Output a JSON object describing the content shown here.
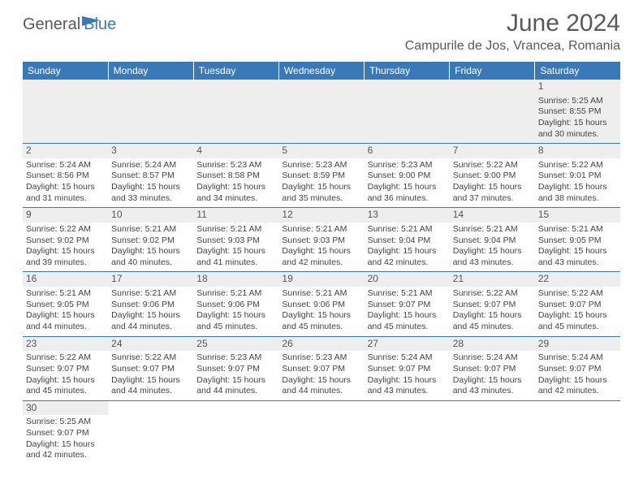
{
  "brand": {
    "part1": "General",
    "part2": "Blue",
    "flag_color": "#3a79b7"
  },
  "title": {
    "month": "June 2024",
    "location": "Campurile de Jos, Vrancea, Romania"
  },
  "style": {
    "header_bg": "#3a79b7",
    "header_text": "#ffffff",
    "daynum_bg": "#eeeeee",
    "cell_border": "#3a79b7",
    "body_text": "#444444",
    "title_color": "#58595b",
    "font_cell": 10.5,
    "font_header": 12,
    "font_title": 30,
    "font_location": 16
  },
  "weekdays": [
    "Sunday",
    "Monday",
    "Tuesday",
    "Wednesday",
    "Thursday",
    "Friday",
    "Saturday"
  ],
  "weeks": [
    [
      null,
      null,
      null,
      null,
      null,
      null,
      {
        "n": "1",
        "sunrise": "Sunrise: 5:25 AM",
        "sunset": "Sunset: 8:55 PM",
        "daylight": "Daylight: 15 hours and 30 minutes."
      }
    ],
    [
      {
        "n": "2",
        "sunrise": "Sunrise: 5:24 AM",
        "sunset": "Sunset: 8:56 PM",
        "daylight": "Daylight: 15 hours and 31 minutes."
      },
      {
        "n": "3",
        "sunrise": "Sunrise: 5:24 AM",
        "sunset": "Sunset: 8:57 PM",
        "daylight": "Daylight: 15 hours and 33 minutes."
      },
      {
        "n": "4",
        "sunrise": "Sunrise: 5:23 AM",
        "sunset": "Sunset: 8:58 PM",
        "daylight": "Daylight: 15 hours and 34 minutes."
      },
      {
        "n": "5",
        "sunrise": "Sunrise: 5:23 AM",
        "sunset": "Sunset: 8:59 PM",
        "daylight": "Daylight: 15 hours and 35 minutes."
      },
      {
        "n": "6",
        "sunrise": "Sunrise: 5:23 AM",
        "sunset": "Sunset: 9:00 PM",
        "daylight": "Daylight: 15 hours and 36 minutes."
      },
      {
        "n": "7",
        "sunrise": "Sunrise: 5:22 AM",
        "sunset": "Sunset: 9:00 PM",
        "daylight": "Daylight: 15 hours and 37 minutes."
      },
      {
        "n": "8",
        "sunrise": "Sunrise: 5:22 AM",
        "sunset": "Sunset: 9:01 PM",
        "daylight": "Daylight: 15 hours and 38 minutes."
      }
    ],
    [
      {
        "n": "9",
        "sunrise": "Sunrise: 5:22 AM",
        "sunset": "Sunset: 9:02 PM",
        "daylight": "Daylight: 15 hours and 39 minutes."
      },
      {
        "n": "10",
        "sunrise": "Sunrise: 5:21 AM",
        "sunset": "Sunset: 9:02 PM",
        "daylight": "Daylight: 15 hours and 40 minutes."
      },
      {
        "n": "11",
        "sunrise": "Sunrise: 5:21 AM",
        "sunset": "Sunset: 9:03 PM",
        "daylight": "Daylight: 15 hours and 41 minutes."
      },
      {
        "n": "12",
        "sunrise": "Sunrise: 5:21 AM",
        "sunset": "Sunset: 9:03 PM",
        "daylight": "Daylight: 15 hours and 42 minutes."
      },
      {
        "n": "13",
        "sunrise": "Sunrise: 5:21 AM",
        "sunset": "Sunset: 9:04 PM",
        "daylight": "Daylight: 15 hours and 42 minutes."
      },
      {
        "n": "14",
        "sunrise": "Sunrise: 5:21 AM",
        "sunset": "Sunset: 9:04 PM",
        "daylight": "Daylight: 15 hours and 43 minutes."
      },
      {
        "n": "15",
        "sunrise": "Sunrise: 5:21 AM",
        "sunset": "Sunset: 9:05 PM",
        "daylight": "Daylight: 15 hours and 43 minutes."
      }
    ],
    [
      {
        "n": "16",
        "sunrise": "Sunrise: 5:21 AM",
        "sunset": "Sunset: 9:05 PM",
        "daylight": "Daylight: 15 hours and 44 minutes."
      },
      {
        "n": "17",
        "sunrise": "Sunrise: 5:21 AM",
        "sunset": "Sunset: 9:06 PM",
        "daylight": "Daylight: 15 hours and 44 minutes."
      },
      {
        "n": "18",
        "sunrise": "Sunrise: 5:21 AM",
        "sunset": "Sunset: 9:06 PM",
        "daylight": "Daylight: 15 hours and 45 minutes."
      },
      {
        "n": "19",
        "sunrise": "Sunrise: 5:21 AM",
        "sunset": "Sunset: 9:06 PM",
        "daylight": "Daylight: 15 hours and 45 minutes."
      },
      {
        "n": "20",
        "sunrise": "Sunrise: 5:21 AM",
        "sunset": "Sunset: 9:07 PM",
        "daylight": "Daylight: 15 hours and 45 minutes."
      },
      {
        "n": "21",
        "sunrise": "Sunrise: 5:22 AM",
        "sunset": "Sunset: 9:07 PM",
        "daylight": "Daylight: 15 hours and 45 minutes."
      },
      {
        "n": "22",
        "sunrise": "Sunrise: 5:22 AM",
        "sunset": "Sunset: 9:07 PM",
        "daylight": "Daylight: 15 hours and 45 minutes."
      }
    ],
    [
      {
        "n": "23",
        "sunrise": "Sunrise: 5:22 AM",
        "sunset": "Sunset: 9:07 PM",
        "daylight": "Daylight: 15 hours and 45 minutes."
      },
      {
        "n": "24",
        "sunrise": "Sunrise: 5:22 AM",
        "sunset": "Sunset: 9:07 PM",
        "daylight": "Daylight: 15 hours and 44 minutes."
      },
      {
        "n": "25",
        "sunrise": "Sunrise: 5:23 AM",
        "sunset": "Sunset: 9:07 PM",
        "daylight": "Daylight: 15 hours and 44 minutes."
      },
      {
        "n": "26",
        "sunrise": "Sunrise: 5:23 AM",
        "sunset": "Sunset: 9:07 PM",
        "daylight": "Daylight: 15 hours and 44 minutes."
      },
      {
        "n": "27",
        "sunrise": "Sunrise: 5:24 AM",
        "sunset": "Sunset: 9:07 PM",
        "daylight": "Daylight: 15 hours and 43 minutes."
      },
      {
        "n": "28",
        "sunrise": "Sunrise: 5:24 AM",
        "sunset": "Sunset: 9:07 PM",
        "daylight": "Daylight: 15 hours and 43 minutes."
      },
      {
        "n": "29",
        "sunrise": "Sunrise: 5:24 AM",
        "sunset": "Sunset: 9:07 PM",
        "daylight": "Daylight: 15 hours and 42 minutes."
      }
    ],
    [
      {
        "n": "30",
        "sunrise": "Sunrise: 5:25 AM",
        "sunset": "Sunset: 9:07 PM",
        "daylight": "Daylight: 15 hours and 42 minutes."
      },
      null,
      null,
      null,
      null,
      null,
      null
    ]
  ]
}
